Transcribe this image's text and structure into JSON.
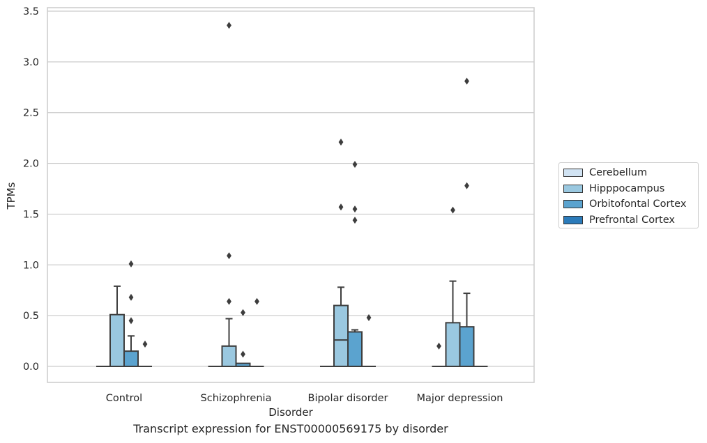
{
  "caption": "Transcript expression for ENST00000569175 by disorder",
  "chart_data": {
    "type": "box",
    "xlabel": "Disorder",
    "ylabel": "TPMs",
    "ylim": [
      -0.16,
      3.55
    ],
    "yticks": [
      0.0,
      0.5,
      1.0,
      1.5,
      2.0,
      2.5,
      3.0,
      3.5
    ],
    "ytick_labels": [
      "0.0",
      "0.5",
      "1.0",
      "1.5",
      "2.0",
      "2.5",
      "3.0",
      "3.5"
    ],
    "categories": [
      "Control",
      "Schizophrenia",
      "Bipolar disorder",
      "Major depression"
    ],
    "grid": "horizontal",
    "legend_position": "right",
    "series": [
      {
        "name": "Cerebellum",
        "color": "#d1e3f3",
        "boxes": [
          {
            "q1": 0.0,
            "median": 0.0,
            "q3": 0.0,
            "whisker_low": 0.0,
            "whisker_high": 0.0,
            "outliers": []
          },
          {
            "q1": 0.0,
            "median": 0.0,
            "q3": 0.0,
            "whisker_low": 0.0,
            "whisker_high": 0.0,
            "outliers": []
          },
          {
            "q1": 0.0,
            "median": 0.0,
            "q3": 0.0,
            "whisker_low": 0.0,
            "whisker_high": 0.0,
            "outliers": []
          },
          {
            "q1": 0.0,
            "median": 0.0,
            "q3": 0.0,
            "whisker_low": 0.0,
            "whisker_high": 0.0,
            "outliers": [
              0.2
            ]
          }
        ]
      },
      {
        "name": "Hipppocampus",
        "color": "#9ac8e0",
        "boxes": [
          {
            "q1": 0.0,
            "median": 0.0,
            "q3": 0.51,
            "whisker_low": 0.0,
            "whisker_high": 0.79,
            "outliers": []
          },
          {
            "q1": 0.0,
            "median": 0.0,
            "q3": 0.2,
            "whisker_low": 0.0,
            "whisker_high": 0.47,
            "outliers": [
              0.64,
              1.09,
              3.36
            ]
          },
          {
            "q1": 0.0,
            "median": 0.26,
            "q3": 0.6,
            "whisker_low": 0.0,
            "whisker_high": 0.78,
            "outliers": [
              1.57,
              2.21
            ]
          },
          {
            "q1": 0.0,
            "median": 0.0,
            "q3": 0.43,
            "whisker_low": 0.0,
            "whisker_high": 0.84,
            "outliers": [
              1.54
            ]
          }
        ]
      },
      {
        "name": "Orbitofontal Cortex",
        "color": "#5ba3cf",
        "boxes": [
          {
            "q1": 0.0,
            "median": 0.0,
            "q3": 0.15,
            "whisker_low": 0.0,
            "whisker_high": 0.3,
            "outliers": [
              0.45,
              0.68,
              1.01
            ]
          },
          {
            "q1": 0.0,
            "median": 0.0,
            "q3": 0.03,
            "whisker_low": 0.0,
            "whisker_high": 0.03,
            "outliers": [
              0.12,
              0.53
            ]
          },
          {
            "q1": 0.0,
            "median": 0.0,
            "q3": 0.34,
            "whisker_low": 0.0,
            "whisker_high": 0.36,
            "outliers": [
              1.44,
              1.55,
              1.99
            ]
          },
          {
            "q1": 0.0,
            "median": 0.0,
            "q3": 0.39,
            "whisker_low": 0.0,
            "whisker_high": 0.72,
            "outliers": [
              1.78,
              2.81
            ]
          }
        ]
      },
      {
        "name": "Prefrontal Cortex",
        "color": "#2b7bba",
        "boxes": [
          {
            "q1": 0.0,
            "median": 0.0,
            "q3": 0.0,
            "whisker_low": 0.0,
            "whisker_high": 0.0,
            "outliers": [
              0.22
            ]
          },
          {
            "q1": 0.0,
            "median": 0.0,
            "q3": 0.0,
            "whisker_low": 0.0,
            "whisker_high": 0.0,
            "outliers": [
              0.64
            ]
          },
          {
            "q1": 0.0,
            "median": 0.0,
            "q3": 0.0,
            "whisker_low": 0.0,
            "whisker_high": 0.0,
            "outliers": [
              0.48
            ]
          },
          {
            "q1": 0.0,
            "median": 0.0,
            "q3": 0.0,
            "whisker_low": 0.0,
            "whisker_high": 0.0,
            "outliers": []
          }
        ]
      }
    ]
  }
}
